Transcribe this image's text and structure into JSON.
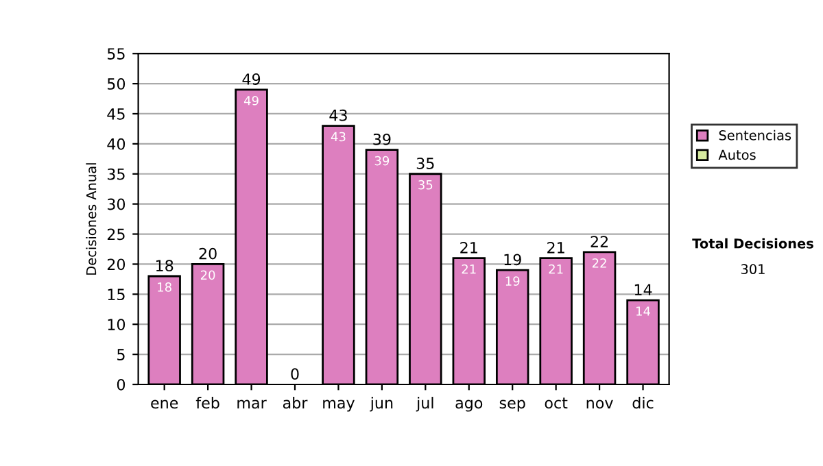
{
  "chart_data": {
    "type": "bar",
    "stacked": true,
    "ylabel": "Decisiones Anual",
    "categories": [
      "ene",
      "feb",
      "mar",
      "abr",
      "may",
      "jun",
      "jul",
      "ago",
      "sep",
      "oct",
      "nov",
      "dic"
    ],
    "series": [
      {
        "name": "Sentencias",
        "color": "#dd7fbf",
        "values": [
          18,
          20,
          49,
          0,
          43,
          39,
          35,
          21,
          19,
          21,
          22,
          14
        ],
        "value_labels": [
          "18",
          "20",
          "49",
          null,
          "43",
          "39",
          "35",
          "21",
          "19",
          "21",
          "22",
          "14"
        ]
      },
      {
        "name": "Autos",
        "color": "#d6eaa0",
        "values": [
          null,
          null,
          null,
          null,
          null,
          null,
          null,
          null,
          null,
          null,
          null,
          null
        ]
      }
    ],
    "totals": [
      "18",
      "20",
      "49",
      "0",
      "43",
      "39",
      "35",
      "21",
      "19",
      "21",
      "22",
      "14"
    ],
    "ylim": [
      0,
      55
    ],
    "yticks": [
      0,
      5,
      10,
      15,
      20,
      25,
      30,
      35,
      40,
      45,
      50,
      55
    ],
    "grid": "y",
    "legend": "right",
    "annotations": [
      "Total Decisiones",
      "301"
    ]
  }
}
